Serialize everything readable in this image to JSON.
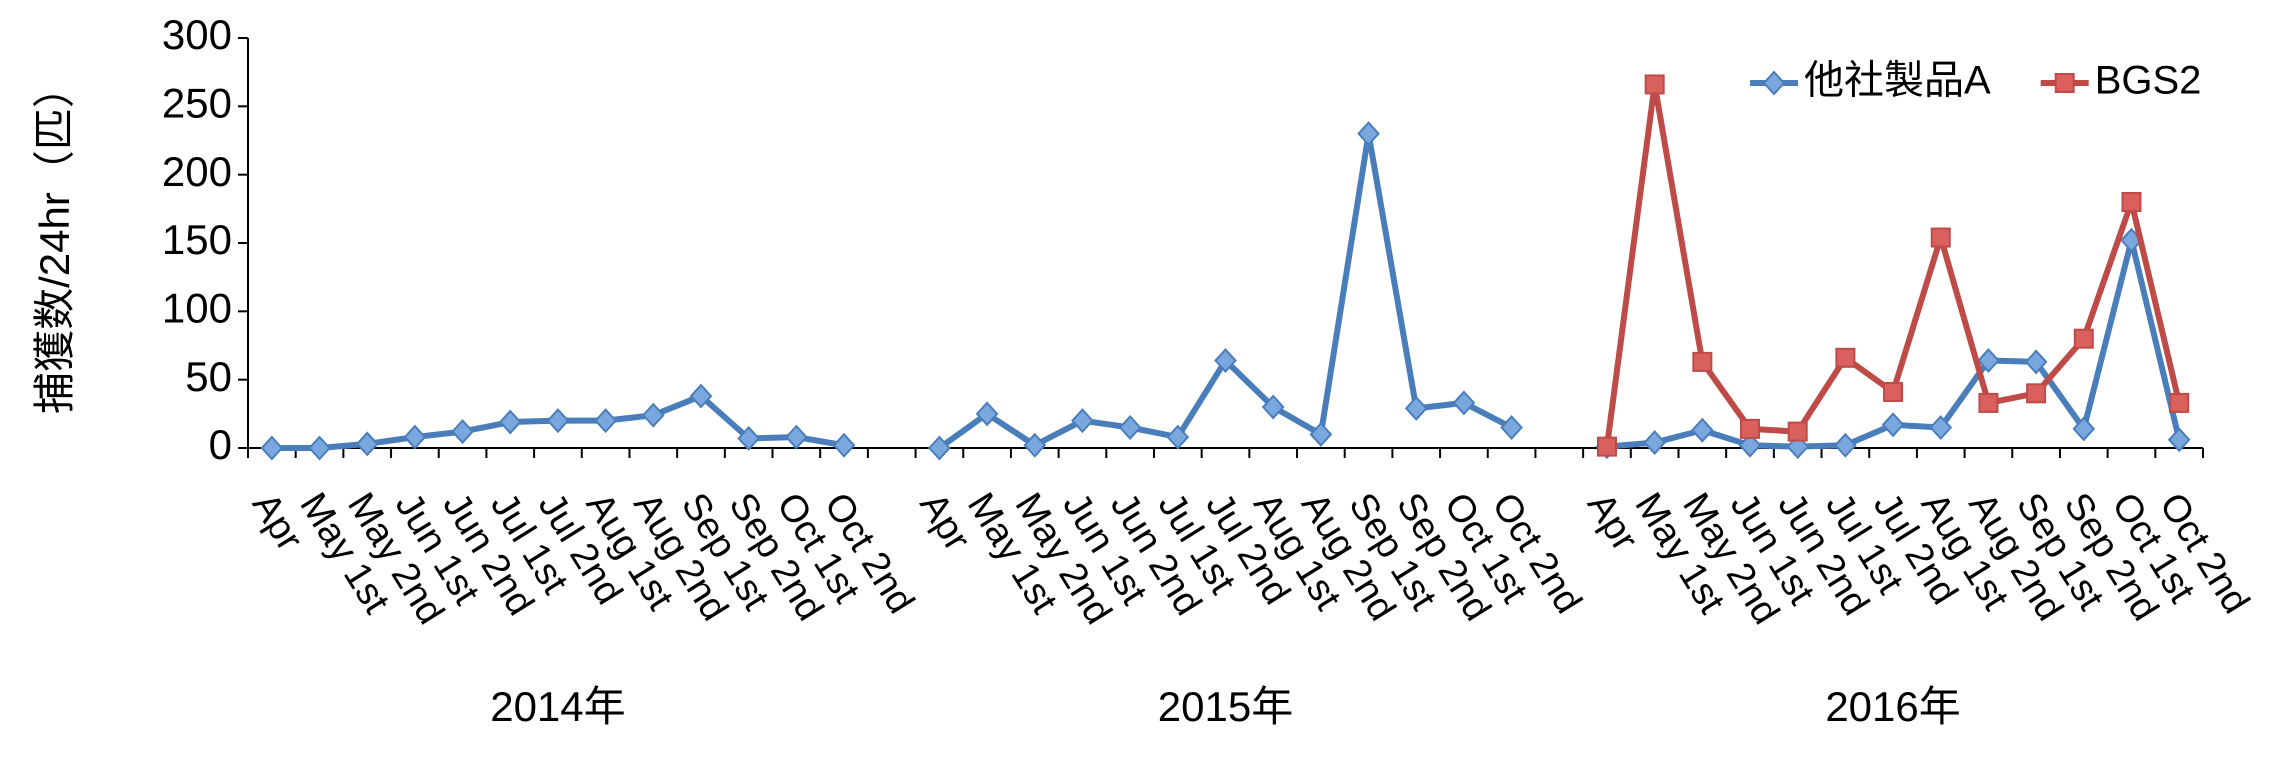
{
  "chart_data": {
    "type": "line",
    "y_label": "捕獲数/24hr（匹）",
    "categories": [
      "Apr",
      "May 1st",
      "May 2nd",
      "Jun 1st",
      "Jun 2nd",
      "Jul 1st",
      "Jul 2nd",
      "Aug 1st",
      "Aug 2nd",
      "Sep 1st",
      "Sep 2nd",
      "Oct 1st",
      "Oct 2nd",
      null,
      "Apr",
      "May 1st",
      "May 2nd",
      "Jun 1st",
      "Jun 2nd",
      "Jul 1st",
      "Jul 2nd",
      "Aug 1st",
      "Aug 2nd",
      "Sep 1st",
      "Sep 2nd",
      "Oct 1st",
      "Oct 2nd",
      null,
      "Apr",
      "May 1st",
      "May 2nd",
      "Jun 1st",
      "Jun 2nd",
      "Jul 1st",
      "Jul 2nd",
      "Aug 1st",
      "Aug 2nd",
      "Sep 1st",
      "Sep 2nd",
      "Oct 1st",
      "Oct 2nd"
    ],
    "category_groups": [
      "2014年",
      "2015年",
      "2016年"
    ],
    "series": [
      {
        "name": "他社製品A",
        "color": "#4a7ebb",
        "marker": "diamond",
        "values": [
          0,
          0,
          3,
          8,
          12,
          19,
          20,
          20,
          24,
          38,
          7,
          8,
          2,
          null,
          0,
          25,
          2,
          20,
          15,
          8,
          64,
          30,
          10,
          230,
          29,
          33,
          15,
          null,
          1,
          4,
          13,
          2,
          1,
          2,
          17,
          15,
          64,
          63,
          14,
          152,
          6
        ]
      },
      {
        "name": "BGS2",
        "color": "#be4b48",
        "marker": "square",
        "values": [
          null,
          null,
          null,
          null,
          null,
          null,
          null,
          null,
          null,
          null,
          null,
          null,
          null,
          null,
          null,
          null,
          null,
          null,
          null,
          null,
          null,
          null,
          null,
          null,
          null,
          null,
          null,
          null,
          1,
          266,
          63,
          14,
          12,
          66,
          41,
          154,
          33,
          40,
          80,
          180,
          33
        ]
      }
    ],
    "ylim": [
      0,
      300
    ],
    "yticks": [
      0,
      50,
      100,
      150,
      200,
      250,
      300
    ],
    "grid": false,
    "legend": "upper right"
  }
}
